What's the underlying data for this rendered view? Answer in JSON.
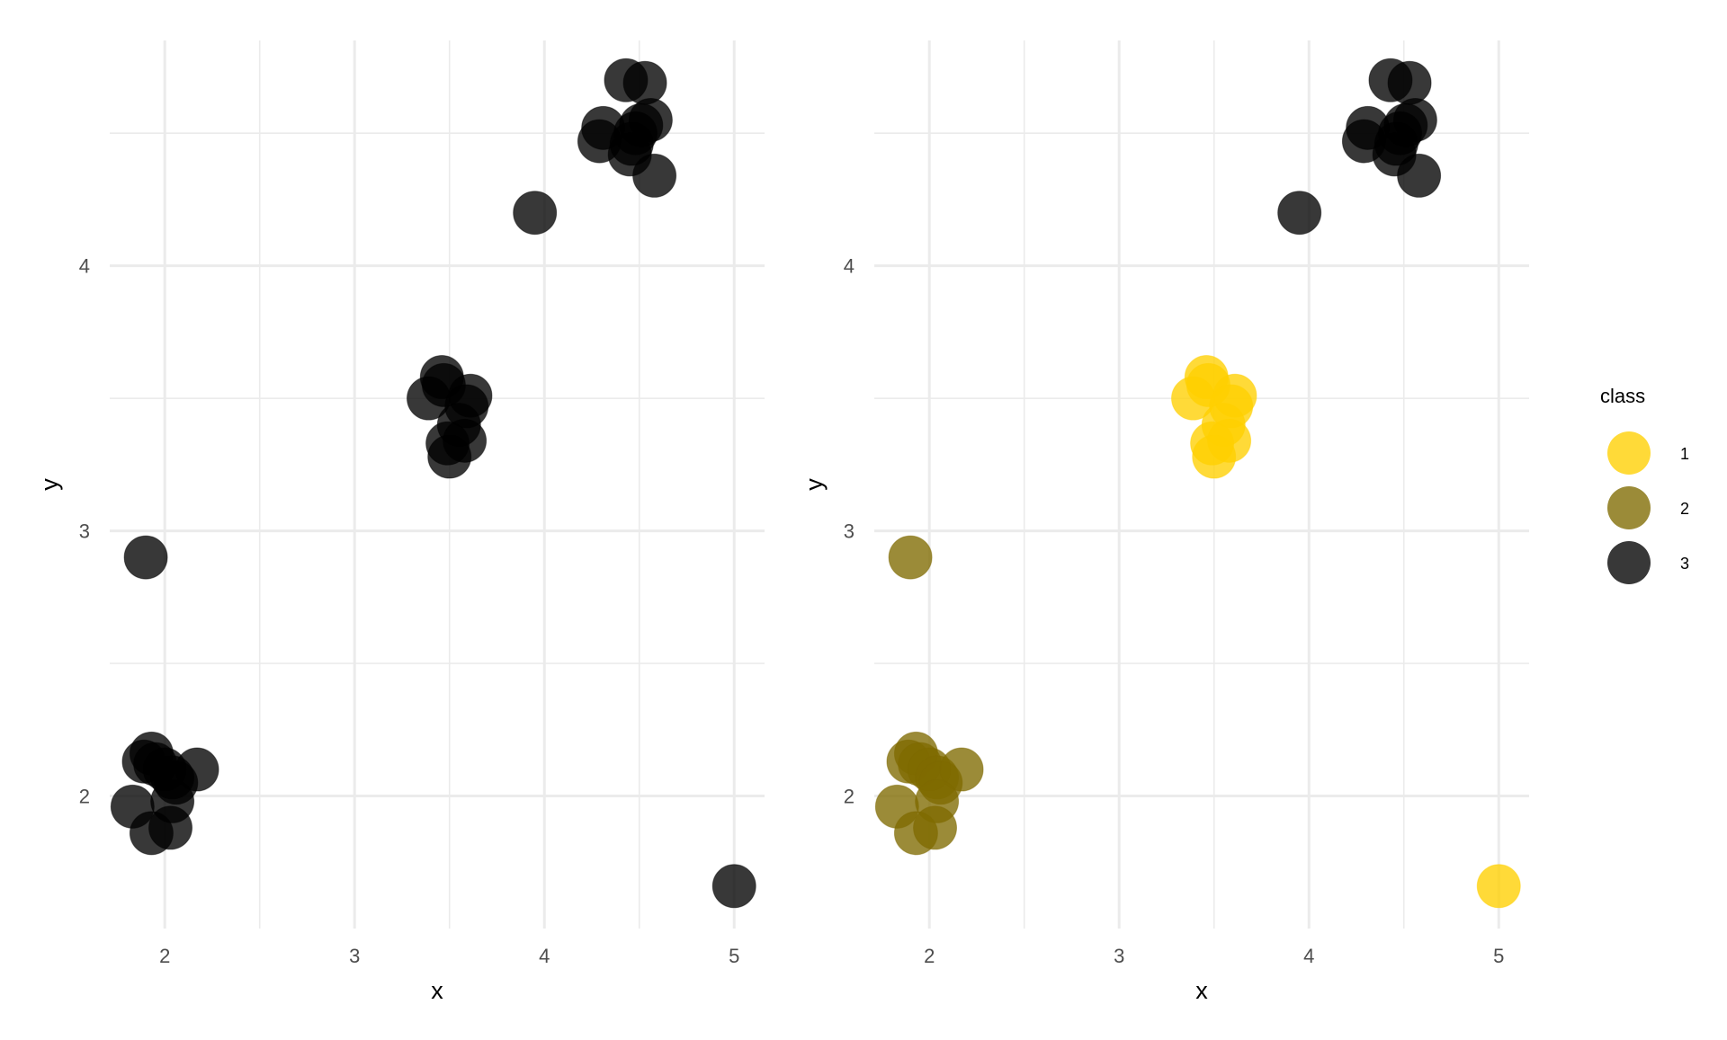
{
  "chart_data": [
    {
      "type": "scatter",
      "title": "",
      "xlabel": "x",
      "ylabel": "y",
      "xlim": [
        1.71,
        5.16
      ],
      "ylim": [
        1.5,
        4.85
      ],
      "xticks": [
        "2",
        "3",
        "4",
        "5"
      ],
      "yticks": [
        "2",
        "3",
        "4"
      ],
      "grid": true,
      "legend": false,
      "point_color": "#000000",
      "point_opacity": 0.78,
      "points": [
        {
          "x": 1.9,
          "y": 2.9,
          "class": "2"
        },
        {
          "x": 1.93,
          "y": 2.16,
          "class": "2"
        },
        {
          "x": 1.89,
          "y": 2.13,
          "class": "2"
        },
        {
          "x": 1.95,
          "y": 2.12,
          "class": "2"
        },
        {
          "x": 2.0,
          "y": 2.1,
          "class": "2"
        },
        {
          "x": 2.04,
          "y": 2.07,
          "class": "2"
        },
        {
          "x": 2.06,
          "y": 2.05,
          "class": "2"
        },
        {
          "x": 2.17,
          "y": 2.1,
          "class": "2"
        },
        {
          "x": 1.83,
          "y": 1.96,
          "class": "2"
        },
        {
          "x": 2.04,
          "y": 1.98,
          "class": "2"
        },
        {
          "x": 1.93,
          "y": 1.86,
          "class": "2"
        },
        {
          "x": 2.03,
          "y": 1.88,
          "class": "2"
        },
        {
          "x": 3.46,
          "y": 3.58,
          "class": "1"
        },
        {
          "x": 3.47,
          "y": 3.55,
          "class": "1"
        },
        {
          "x": 3.39,
          "y": 3.5,
          "class": "1"
        },
        {
          "x": 3.61,
          "y": 3.51,
          "class": "1"
        },
        {
          "x": 3.59,
          "y": 3.47,
          "class": "1"
        },
        {
          "x": 3.55,
          "y": 3.4,
          "class": "1"
        },
        {
          "x": 3.49,
          "y": 3.33,
          "class": "1"
        },
        {
          "x": 3.58,
          "y": 3.34,
          "class": "1"
        },
        {
          "x": 3.5,
          "y": 3.28,
          "class": "1"
        },
        {
          "x": 5.0,
          "y": 1.66,
          "class": "1"
        },
        {
          "x": 3.95,
          "y": 4.2,
          "class": "3"
        },
        {
          "x": 4.43,
          "y": 4.7,
          "class": "3"
        },
        {
          "x": 4.53,
          "y": 4.69,
          "class": "3"
        },
        {
          "x": 4.31,
          "y": 4.52,
          "class": "3"
        },
        {
          "x": 4.29,
          "y": 4.47,
          "class": "3"
        },
        {
          "x": 4.48,
          "y": 4.5,
          "class": "3"
        },
        {
          "x": 4.51,
          "y": 4.53,
          "class": "3"
        },
        {
          "x": 4.56,
          "y": 4.55,
          "class": "3"
        },
        {
          "x": 4.46,
          "y": 4.46,
          "class": "3"
        },
        {
          "x": 4.45,
          "y": 4.42,
          "class": "3"
        },
        {
          "x": 4.58,
          "y": 4.34,
          "class": "3"
        }
      ]
    },
    {
      "type": "scatter",
      "title": "",
      "xlabel": "x",
      "ylabel": "y",
      "xlim": [
        1.71,
        5.16
      ],
      "ylim": [
        1.5,
        4.85
      ],
      "xticks": [
        "2",
        "3",
        "4",
        "5"
      ],
      "yticks": [
        "2",
        "3",
        "4"
      ],
      "grid": true,
      "legend": true,
      "legend_position": "right",
      "legend_title": "class",
      "point_opacity": 0.78,
      "classes": [
        {
          "name": "1",
          "color": "#ffd000"
        },
        {
          "name": "2",
          "color": "#7f6a00"
        },
        {
          "name": "3",
          "color": "#000000"
        }
      ],
      "points": [
        {
          "x": 1.9,
          "y": 2.9,
          "class": "2"
        },
        {
          "x": 1.93,
          "y": 2.16,
          "class": "2"
        },
        {
          "x": 1.89,
          "y": 2.13,
          "class": "2"
        },
        {
          "x": 1.95,
          "y": 2.12,
          "class": "2"
        },
        {
          "x": 2.0,
          "y": 2.1,
          "class": "2"
        },
        {
          "x": 2.04,
          "y": 2.07,
          "class": "2"
        },
        {
          "x": 2.06,
          "y": 2.05,
          "class": "2"
        },
        {
          "x": 2.17,
          "y": 2.1,
          "class": "2"
        },
        {
          "x": 1.83,
          "y": 1.96,
          "class": "2"
        },
        {
          "x": 2.04,
          "y": 1.98,
          "class": "2"
        },
        {
          "x": 1.93,
          "y": 1.86,
          "class": "2"
        },
        {
          "x": 2.03,
          "y": 1.88,
          "class": "2"
        },
        {
          "x": 3.46,
          "y": 3.58,
          "class": "1"
        },
        {
          "x": 3.47,
          "y": 3.55,
          "class": "1"
        },
        {
          "x": 3.39,
          "y": 3.5,
          "class": "1"
        },
        {
          "x": 3.61,
          "y": 3.51,
          "class": "1"
        },
        {
          "x": 3.59,
          "y": 3.47,
          "class": "1"
        },
        {
          "x": 3.55,
          "y": 3.4,
          "class": "1"
        },
        {
          "x": 3.49,
          "y": 3.33,
          "class": "1"
        },
        {
          "x": 3.58,
          "y": 3.34,
          "class": "1"
        },
        {
          "x": 3.5,
          "y": 3.28,
          "class": "1"
        },
        {
          "x": 5.0,
          "y": 1.66,
          "class": "1"
        },
        {
          "x": 3.95,
          "y": 4.2,
          "class": "3"
        },
        {
          "x": 4.43,
          "y": 4.7,
          "class": "3"
        },
        {
          "x": 4.53,
          "y": 4.69,
          "class": "3"
        },
        {
          "x": 4.31,
          "y": 4.52,
          "class": "3"
        },
        {
          "x": 4.29,
          "y": 4.47,
          "class": "3"
        },
        {
          "x": 4.48,
          "y": 4.5,
          "class": "3"
        },
        {
          "x": 4.51,
          "y": 4.53,
          "class": "3"
        },
        {
          "x": 4.56,
          "y": 4.55,
          "class": "3"
        },
        {
          "x": 4.46,
          "y": 4.46,
          "class": "3"
        },
        {
          "x": 4.45,
          "y": 4.42,
          "class": "3"
        },
        {
          "x": 4.58,
          "y": 4.34,
          "class": "3"
        }
      ]
    }
  ]
}
